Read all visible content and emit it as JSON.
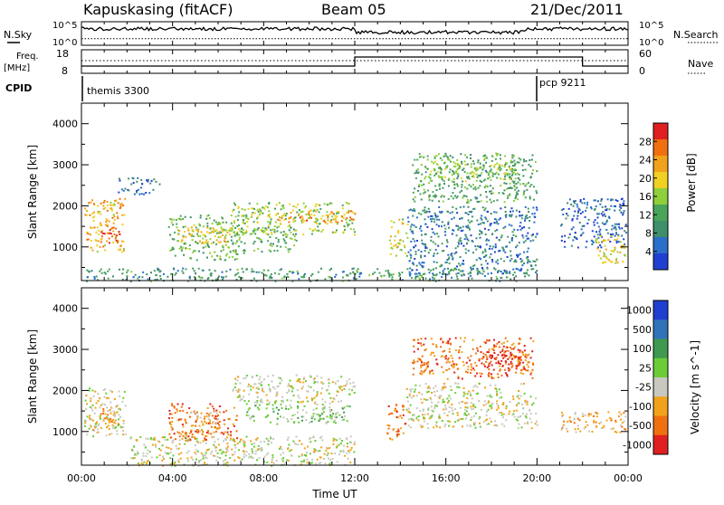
{
  "header": {
    "site": "Kapuskasing (fitACF)",
    "beam": "Beam 05",
    "date": "21/Dec/2011"
  },
  "params": {
    "nsky_label": "N.Sky",
    "nsearch_label": "N.Search",
    "freq_label": "Freq.",
    "freq_unit": "[MHz]",
    "nave_label": "Nave",
    "cpid_label": "CPID",
    "nsky_ticks": [
      "10^5",
      "10^0"
    ],
    "nsearch_ticks": [
      "10^5",
      "10^0"
    ],
    "freq_ticks": [
      "18",
      "8"
    ],
    "nave_ticks": [
      "60",
      "0"
    ]
  },
  "cpid": [
    {
      "name": "themis 3300",
      "start_hour": 0.0
    },
    {
      "name": "pcp 9211",
      "start_hour": 20.0
    }
  ],
  "colors": {
    "power": [
      "#1f3fd0",
      "#2a6fc8",
      "#3f8f6a",
      "#4aa55a",
      "#8fcf3a",
      "#f0d020",
      "#f2a21a",
      "#f07010",
      "#e02020"
    ],
    "velocity": [
      "#1f3fd0",
      "#2f74b8",
      "#3f9a4f",
      "#6ccc38",
      "#c8c8c0",
      "#f2a21a",
      "#f07010",
      "#e02020"
    ]
  },
  "chart_data": [
    {
      "type": "heatmap",
      "quantity": "Power",
      "x": {
        "unit": "hour",
        "range": [
          0,
          24
        ],
        "tick_labels": [
          "00:00",
          "04:00",
          "08:00",
          "12:00",
          "16:00",
          "20:00",
          "00:00"
        ]
      },
      "y": {
        "label": "Slant Range [km]",
        "range": [
          180,
          4500
        ],
        "tick_labels": [
          "1000",
          "2000",
          "3000",
          "4000"
        ]
      },
      "colorbar": {
        "label": "Power [dB]",
        "range": [
          0,
          32
        ],
        "tick_labels": [
          "4",
          "8",
          "12",
          "16",
          "20",
          "24",
          "28"
        ]
      },
      "regions": [
        {
          "t0": 0.1,
          "t1": 1.9,
          "r0": 900,
          "r1": 2200,
          "level": 22
        },
        {
          "t0": 0.8,
          "t1": 1.7,
          "r0": 1100,
          "r1": 1500,
          "level": 30
        },
        {
          "t0": 1.6,
          "t1": 3.4,
          "r0": 2300,
          "r1": 2700,
          "level": 6
        },
        {
          "t0": 3.8,
          "t1": 7.2,
          "r0": 700,
          "r1": 1800,
          "level": 14
        },
        {
          "t0": 4.2,
          "t1": 6.6,
          "r0": 1100,
          "r1": 1500,
          "level": 20
        },
        {
          "t0": 6.6,
          "t1": 12.0,
          "r0": 1300,
          "r1": 2100,
          "level": 16
        },
        {
          "t0": 8.5,
          "t1": 12.0,
          "r0": 1600,
          "r1": 1900,
          "level": 24
        },
        {
          "t0": 7.5,
          "t1": 9.5,
          "r0": 900,
          "r1": 1500,
          "level": 12
        },
        {
          "t0": 0.2,
          "t1": 19.8,
          "r0": 180,
          "r1": 500,
          "level": 10
        },
        {
          "t0": 13.5,
          "t1": 14.3,
          "r0": 800,
          "r1": 1700,
          "level": 18
        },
        {
          "t0": 14.5,
          "t1": 20.0,
          "r0": 2100,
          "r1": 3300,
          "level": 12
        },
        {
          "t0": 15.2,
          "t1": 19.2,
          "r0": 2600,
          "r1": 3100,
          "level": 16
        },
        {
          "t0": 14.3,
          "t1": 20.0,
          "r0": 300,
          "r1": 2000,
          "level": 7
        },
        {
          "t0": 21.0,
          "t1": 23.9,
          "r0": 1000,
          "r1": 2200,
          "level": 5
        },
        {
          "t0": 22.5,
          "t1": 23.9,
          "r0": 600,
          "r1": 1300,
          "level": 20
        }
      ]
    },
    {
      "type": "heatmap",
      "quantity": "Velocity",
      "x": {
        "label": "Time UT",
        "unit": "hour",
        "range": [
          0,
          24
        ],
        "tick_labels": [
          "00:00",
          "04:00",
          "08:00",
          "12:00",
          "16:00",
          "20:00",
          "00:00"
        ]
      },
      "y": {
        "label": "Slant Range [km]",
        "range": [
          180,
          4500
        ],
        "tick_labels": [
          "1000",
          "2000",
          "3000",
          "4000"
        ]
      },
      "colorbar": {
        "label": "Velocity [m s^-1]",
        "tick_labels": [
          "1000",
          "500",
          "100",
          "25",
          "-25",
          "-100",
          "-500",
          "-1000"
        ]
      },
      "regions": [
        {
          "t0": 0.1,
          "t1": 1.9,
          "r0": 900,
          "r1": 2100,
          "class": 4
        },
        {
          "t0": 0.3,
          "t1": 1.6,
          "r0": 1000,
          "r1": 1600,
          "class": 5
        },
        {
          "t0": 3.8,
          "t1": 6.8,
          "r0": 800,
          "r1": 1700,
          "class": 6
        },
        {
          "t0": 4.5,
          "t1": 6.0,
          "r0": 1000,
          "r1": 1500,
          "class": 5
        },
        {
          "t0": 6.6,
          "t1": 12.0,
          "r0": 1700,
          "r1": 2400,
          "class": 4
        },
        {
          "t0": 7.2,
          "t1": 11.8,
          "r0": 1200,
          "r1": 1700,
          "class": 3
        },
        {
          "t0": 2.0,
          "t1": 12.0,
          "r0": 180,
          "r1": 900,
          "class": 4
        },
        {
          "t0": 13.4,
          "t1": 14.2,
          "r0": 800,
          "r1": 1700,
          "class": 6
        },
        {
          "t0": 14.5,
          "t1": 19.8,
          "r0": 2300,
          "r1": 3300,
          "class": 6
        },
        {
          "t0": 17.5,
          "t1": 19.5,
          "r0": 2500,
          "r1": 3000,
          "class": 7
        },
        {
          "t0": 14.2,
          "t1": 20.0,
          "r0": 1100,
          "r1": 2200,
          "class": 4
        },
        {
          "t0": 21.0,
          "t1": 23.9,
          "r0": 1000,
          "r1": 1500,
          "class": 5
        }
      ]
    }
  ]
}
